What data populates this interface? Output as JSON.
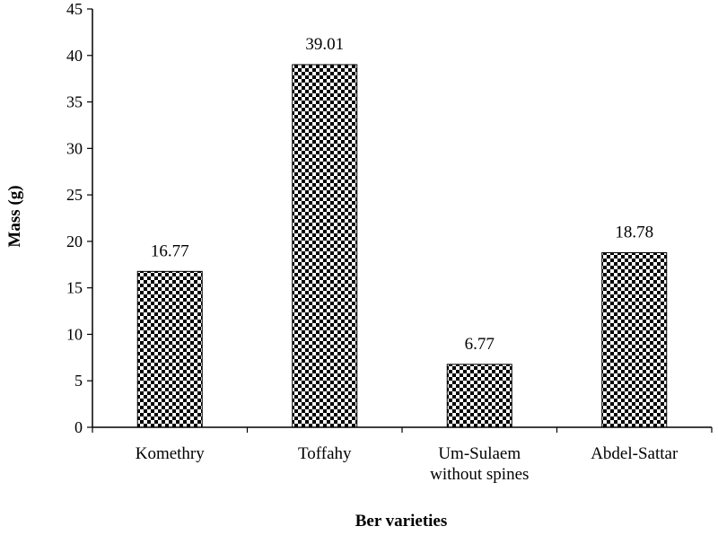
{
  "chart_data": {
    "type": "bar",
    "title": "",
    "xlabel": "Ber varieties",
    "ylabel": "Mass (g)",
    "categories": [
      [
        "Komethry"
      ],
      [
        "Toffahy"
      ],
      [
        "Um-Sulaem",
        "without spines"
      ],
      [
        "Abdel-Sattar"
      ]
    ],
    "values": [
      16.77,
      39.01,
      6.77,
      18.78
    ],
    "data_labels": [
      "16.77",
      "39.01",
      "6.77",
      "18.78"
    ],
    "ylim": [
      0,
      45
    ],
    "yticks": [
      0,
      5,
      10,
      15,
      20,
      25,
      30,
      35,
      40,
      45
    ],
    "grid": false,
    "legend": "none",
    "bar_fill": "checkerboard",
    "colors": {
      "bar_dark": "#000000",
      "bar_light": "#ffffff",
      "axis": "#000000"
    }
  }
}
